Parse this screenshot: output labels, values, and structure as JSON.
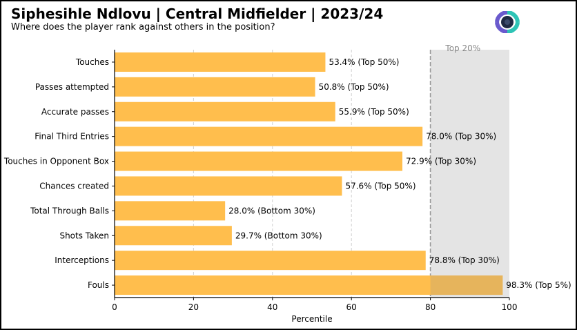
{
  "header": {
    "title": "Siphesihle Ndlovu | Central Midfielder | 2023/24",
    "subtitle": "Where does the player rank against others in the position?"
  },
  "logo": {
    "icon": "football-club-logo-icon",
    "colors": [
      "#6a5acd",
      "#2ec4b6",
      "#1f2a44"
    ]
  },
  "chart_data": {
    "type": "bar",
    "orientation": "horizontal",
    "xlabel": "Percentile",
    "xlim": [
      0,
      100
    ],
    "xticks": [
      0,
      20,
      40,
      60,
      80,
      100
    ],
    "grid": "vertical dashed",
    "categories": [
      "Touches",
      "Passes attempted",
      "Accurate passes",
      "Final Third Entries",
      "Touches in Opponent Box",
      "Chances created",
      "Total Through Balls",
      "Shots Taken",
      "Interceptions",
      "Fouls"
    ],
    "values": [
      53.4,
      50.8,
      55.9,
      78.0,
      72.9,
      57.6,
      28.0,
      29.7,
      78.8,
      98.3
    ],
    "data_labels": [
      "53.4% (Top 50%)",
      "50.8% (Top 50%)",
      "55.9% (Top 50%)",
      "78.0% (Top 30%)",
      "72.9% (Top 30%)",
      "57.6% (Top 50%)",
      "28.0% (Bottom 30%)",
      "29.7% (Bottom 30%)",
      "78.8% (Top 30%)",
      "98.3% (Top 5%)"
    ],
    "threshold": {
      "value": 80,
      "label": "Top 20%"
    },
    "colors": {
      "bar": "#ffbe4d",
      "bar_in_region": "#e6b45c",
      "region": "#e4e4e4",
      "threshold_line": "#999999",
      "grid": "#d0d0d0"
    }
  }
}
